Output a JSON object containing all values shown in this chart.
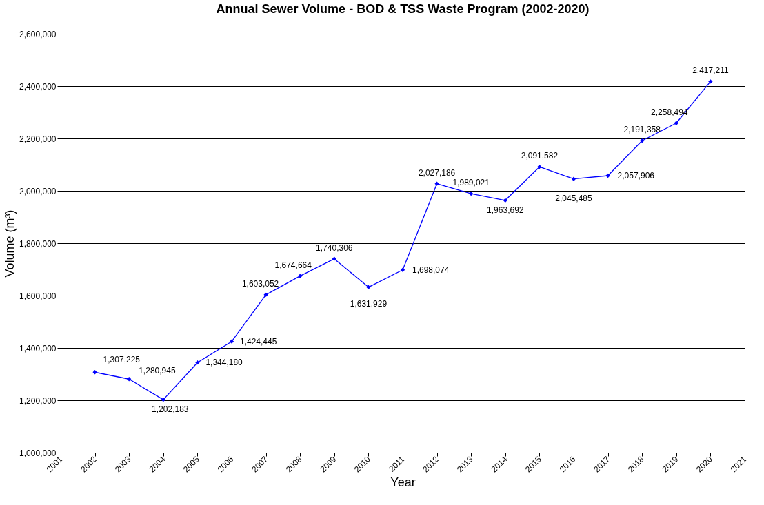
{
  "chart_data": {
    "type": "line",
    "title": "Annual Sewer Volume - BOD & TSS Waste Program (2002-2020)",
    "xlabel": "Year",
    "ylabel": "Volume (m³)",
    "x": [
      2002,
      2003,
      2004,
      2005,
      2006,
      2007,
      2008,
      2009,
      2010,
      2011,
      2012,
      2013,
      2014,
      2015,
      2016,
      2017,
      2018,
      2019,
      2020
    ],
    "series": [
      {
        "color": "#0000ff",
        "values": [
          1307225,
          1280945,
          1202183,
          1344180,
          1424445,
          1603052,
          1674664,
          1740306,
          1631929,
          1698074,
          2027186,
          1989021,
          1963692,
          2091582,
          2045485,
          2057906,
          2191358,
          2258494,
          2417211
        ],
        "value_labels": [
          "1,307,225",
          "1,280,945",
          "1,202,183",
          "1,344,180",
          "1,424,445",
          "1,603,052",
          "1,674,664",
          "1,740,306",
          "1,631,929",
          "1,698,074",
          "2,027,186",
          "1,989,021",
          "1,963,692",
          "2,091,582",
          "2,045,485",
          "2,057,906",
          "2,191,358",
          "2,258,494",
          "2,417,211"
        ]
      }
    ],
    "xlim": [
      2001,
      2021
    ],
    "xticks": [
      2001,
      2002,
      2003,
      2004,
      2005,
      2006,
      2007,
      2008,
      2009,
      2010,
      2011,
      2012,
      2013,
      2014,
      2015,
      2016,
      2017,
      2018,
      2019,
      2020,
      2021
    ],
    "ylim": [
      1000000,
      2600000
    ],
    "yticks": [
      {
        "value": 1000000,
        "label": "1,000,000"
      },
      {
        "value": 1200000,
        "label": "1,200,000"
      },
      {
        "value": 1400000,
        "label": "1,400,000"
      },
      {
        "value": 1600000,
        "label": "1,600,000"
      },
      {
        "value": 1800000,
        "label": "1,800,000"
      },
      {
        "value": 2000000,
        "label": "2,000,000"
      },
      {
        "value": 2200000,
        "label": "2,200,000"
      },
      {
        "value": 2400000,
        "label": "2,400,000"
      },
      {
        "value": 2600000,
        "label": "2,600,000"
      }
    ],
    "grid": "y",
    "marker": "diamond",
    "line_style": "solid"
  }
}
